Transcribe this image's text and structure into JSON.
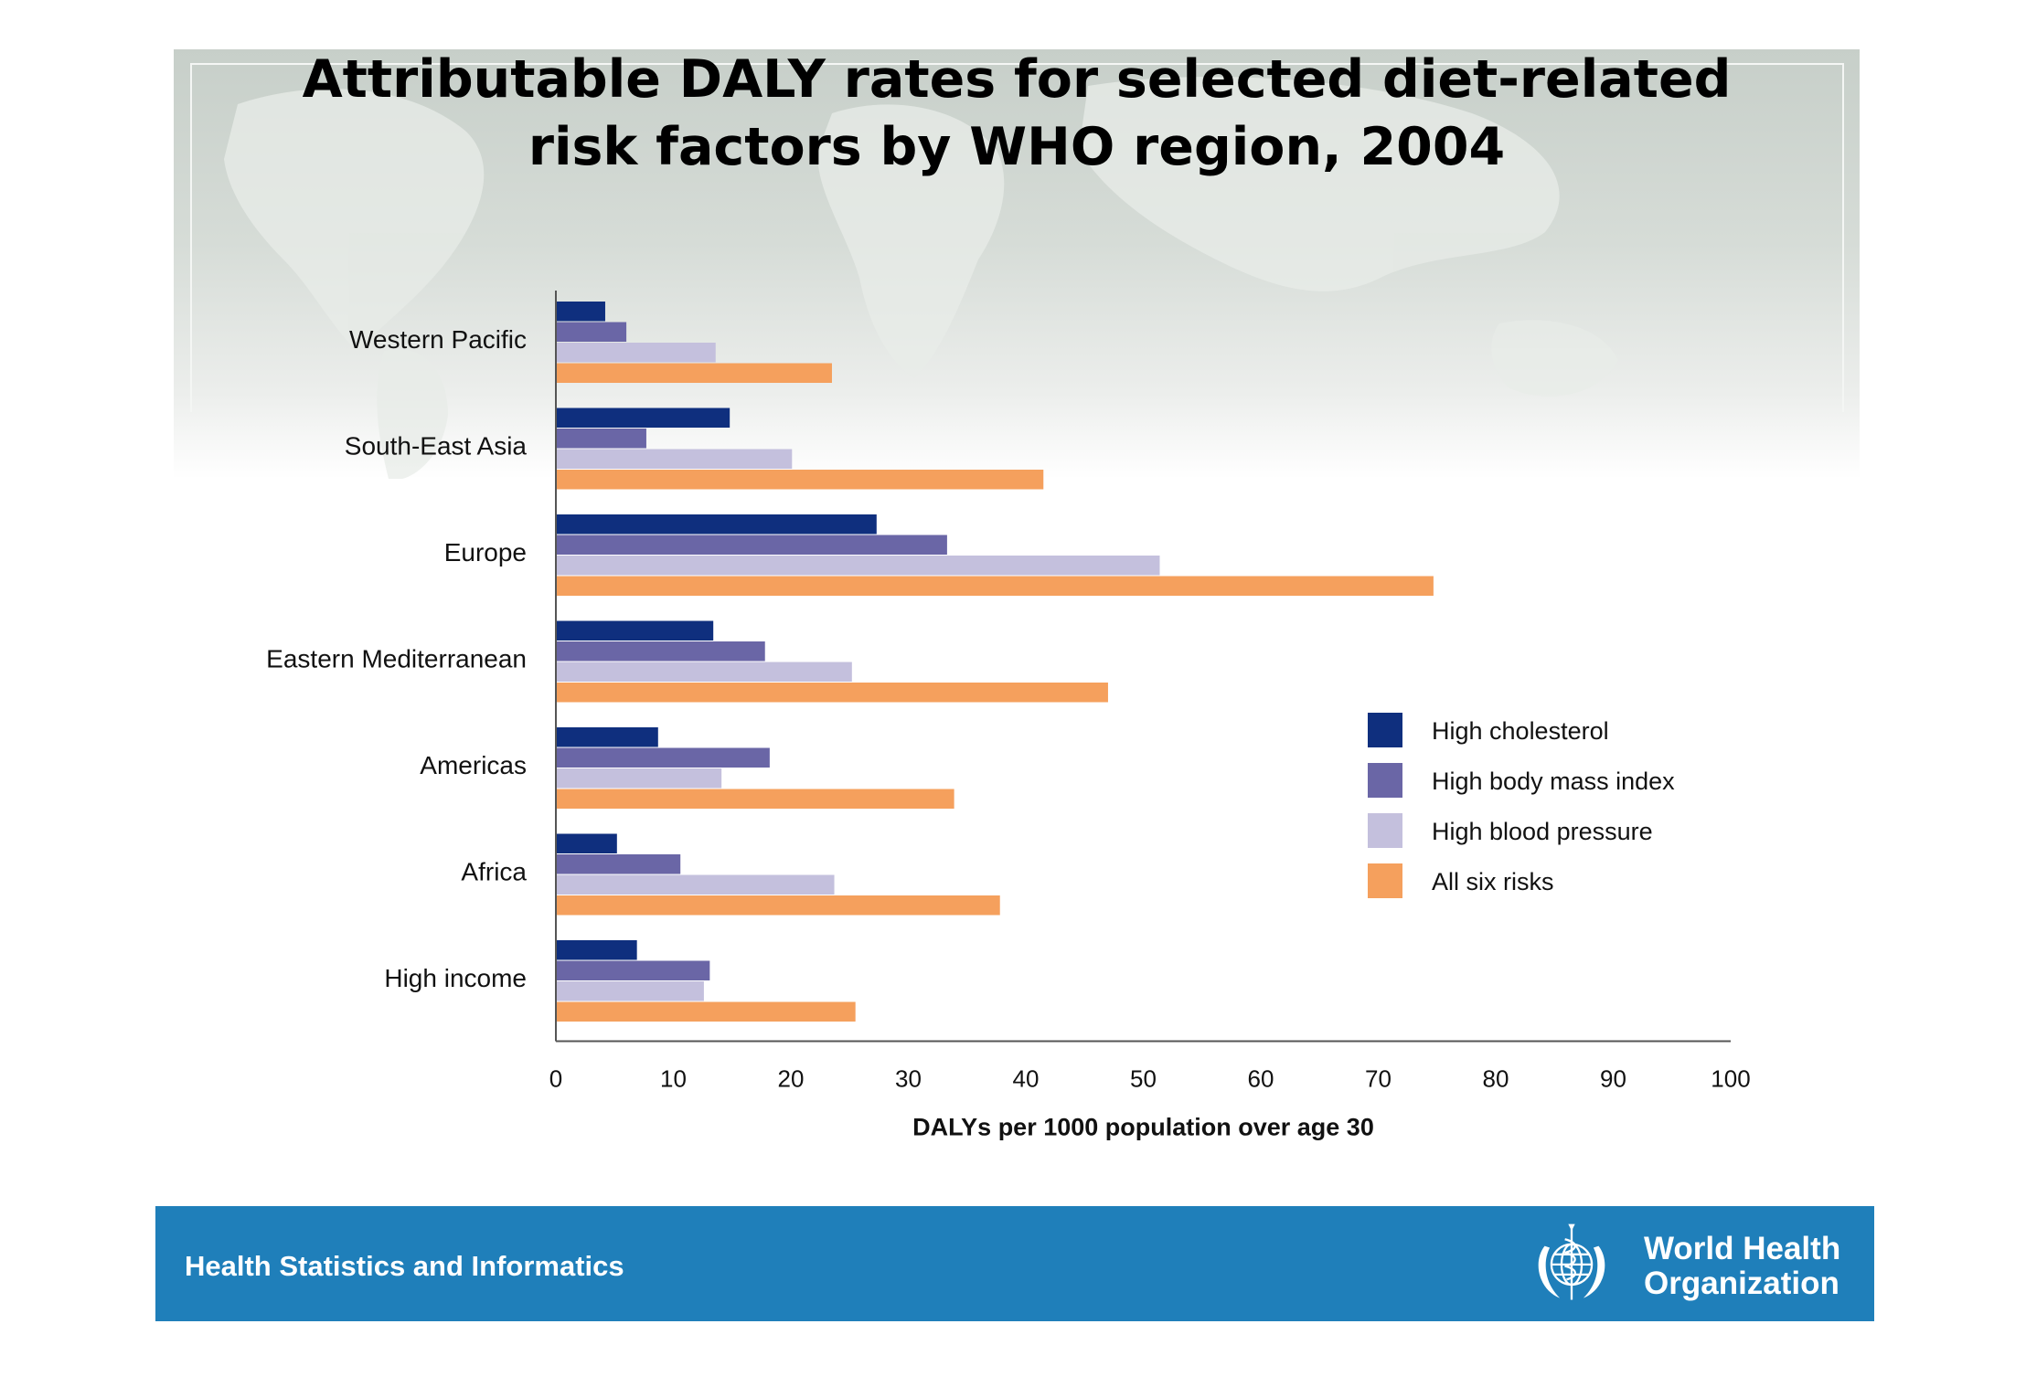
{
  "slide": {
    "title_line1": "Attributable DALY rates for selected diet-related",
    "title_line2": "risk factors by WHO region, 2004"
  },
  "footer": {
    "department": "Health Statistics and Informatics",
    "org_name_line1": "World Health",
    "org_name_line2": "Organization",
    "background_color": "#1f7fba"
  },
  "chart_data": {
    "type": "bar",
    "orientation": "horizontal",
    "title": "Attributable DALY rates for selected diet-related risk factors by WHO region, 2004",
    "categories": [
      "Western Pacific",
      "South-East Asia",
      "Europe",
      "Eastern Mediterranean",
      "Americas",
      "Africa",
      "High income"
    ],
    "series": [
      {
        "name": "High cholesterol",
        "color": "#0f2f7e",
        "values": [
          4.2,
          14.8,
          27.3,
          13.4,
          8.7,
          5.2,
          6.9
        ]
      },
      {
        "name": "High body mass index",
        "color": "#6a66a6",
        "values": [
          6.0,
          7.7,
          33.3,
          17.8,
          18.2,
          10.6,
          13.1
        ]
      },
      {
        "name": "High blood pressure",
        "color": "#c4c0dd",
        "values": [
          13.6,
          20.1,
          51.4,
          25.2,
          14.1,
          23.7,
          12.6
        ]
      },
      {
        "name": "All six risks",
        "color": "#f5a05d",
        "values": [
          23.5,
          41.5,
          74.7,
          47.0,
          33.9,
          37.8,
          25.5
        ]
      }
    ],
    "xlabel": "DALYs per 1000 population over age 30",
    "ylabel": "",
    "xlim": [
      0,
      100
    ],
    "xticks": [
      0,
      10,
      20,
      30,
      40,
      50,
      60,
      70,
      80,
      90,
      100
    ],
    "grid": false,
    "legend_position": "right"
  }
}
